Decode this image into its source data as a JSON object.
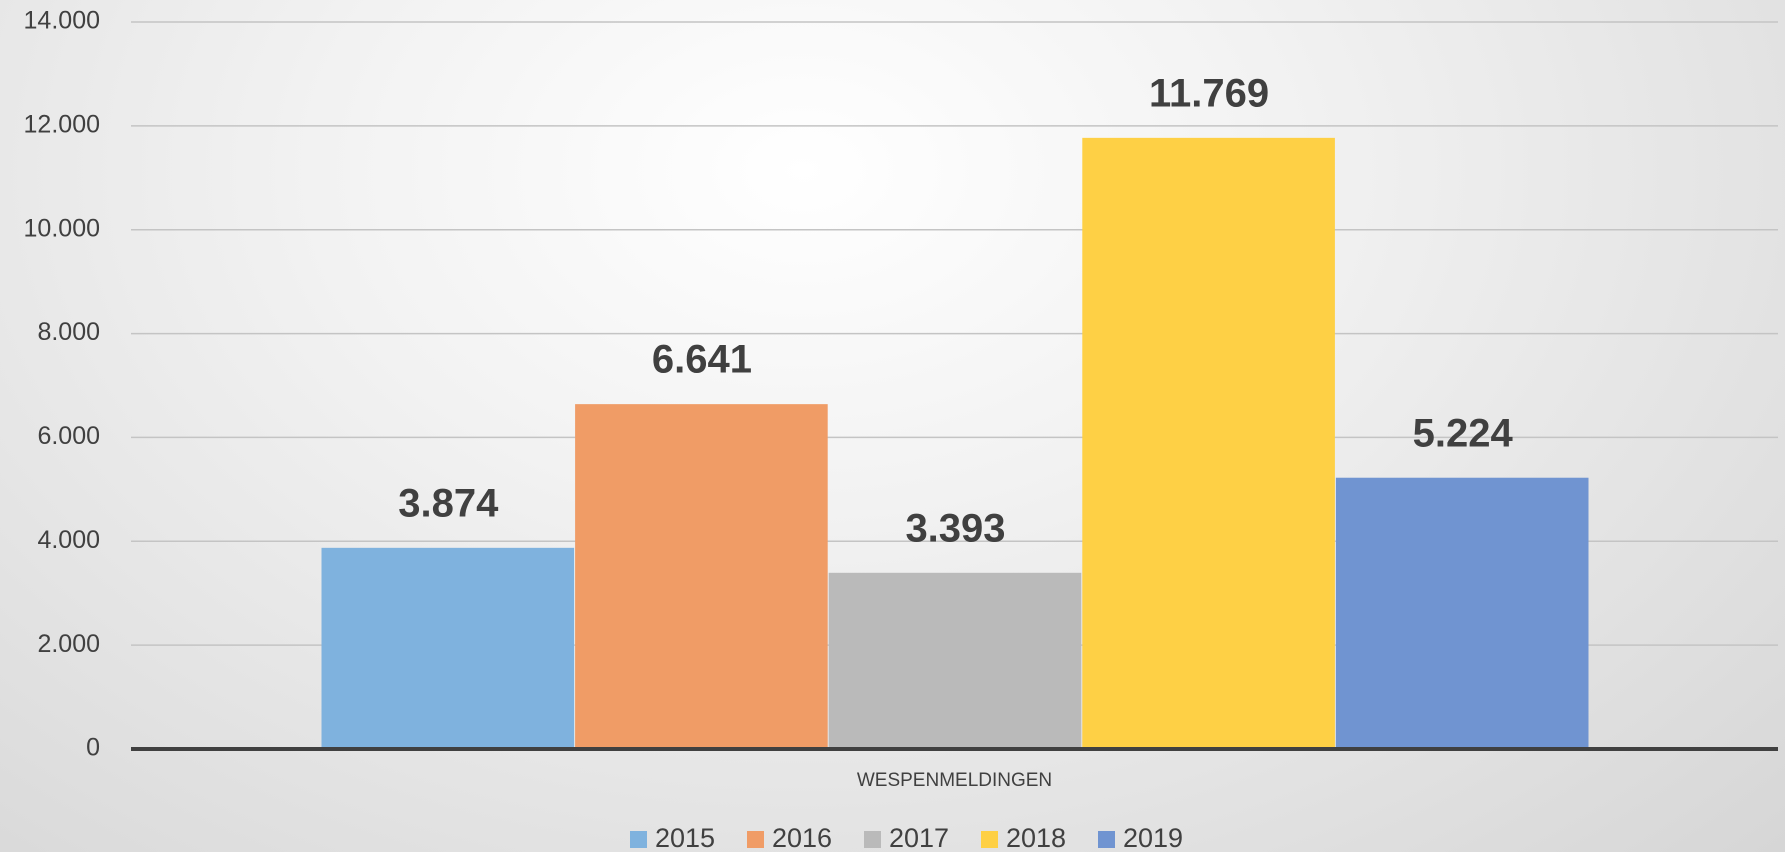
{
  "chart_data": {
    "type": "bar",
    "categories": [
      "WESPENMELDINGEN"
    ],
    "series": [
      {
        "name": "2015",
        "color": "#7fb2de",
        "values": [
          3874
        ],
        "value_labels": [
          "3.874"
        ]
      },
      {
        "name": "2016",
        "color": "#f09c66",
        "values": [
          6641
        ],
        "value_labels": [
          "6.641"
        ]
      },
      {
        "name": "2017",
        "color": "#bababa",
        "values": [
          3393
        ],
        "value_labels": [
          "3.393"
        ]
      },
      {
        "name": "2018",
        "color": "#fed045",
        "values": [
          11769
        ],
        "value_labels": [
          "11.769"
        ]
      },
      {
        "name": "2019",
        "color": "#7094d1",
        "values": [
          5224
        ],
        "value_labels": [
          "5.224"
        ]
      }
    ],
    "ylim": [
      0,
      14000
    ],
    "yticks": [
      0,
      {
        "value": 2000,
        "label": "2.000"
      },
      {
        "value": 4000,
        "label": "4.000"
      },
      {
        "value": 6000,
        "label": "6.000"
      },
      {
        "value": 8000,
        "label": "8.000"
      },
      {
        "value": 10000,
        "label": "10.000"
      },
      {
        "value": 12000,
        "label": "12.000"
      },
      {
        "value": 14000,
        "label": "14.000"
      }
    ],
    "grid": true,
    "legend": "bottom"
  }
}
